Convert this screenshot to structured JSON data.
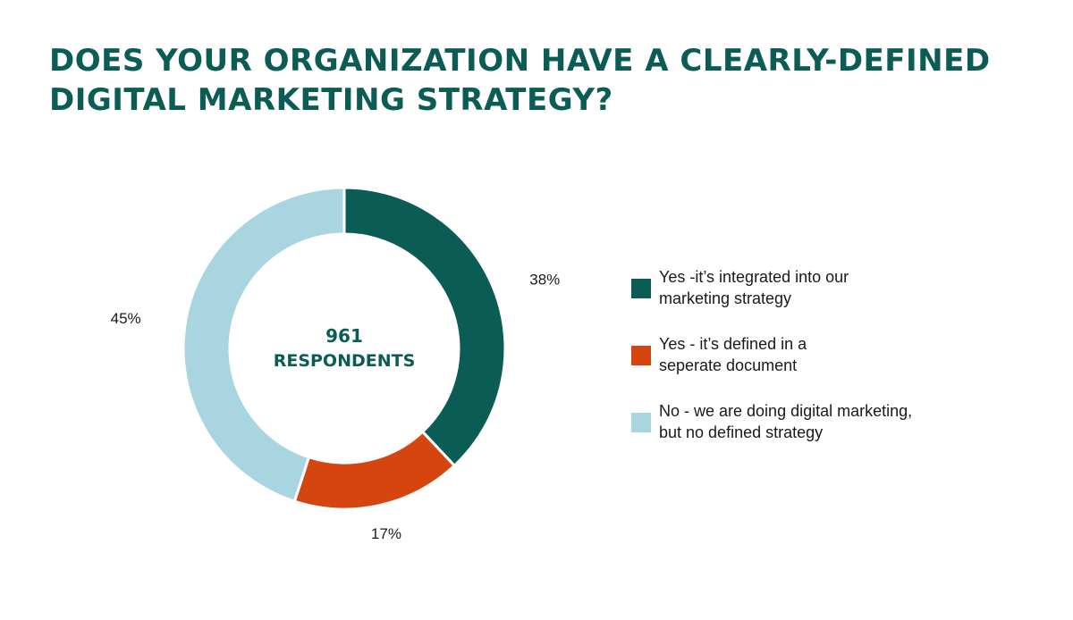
{
  "title": {
    "line1": "DOES YOUR ORGANIZATION HAVE A CLEARLY-DEFINED",
    "line2": "DIGITAL MARKETING STRATEGY?"
  },
  "center_label": {
    "count": "961",
    "text": "RESPONDENTS"
  },
  "legend": [
    {
      "line1": "Yes -it’s integrated into our",
      "line2": "marketing strategy",
      "color": "#0b5c55"
    },
    {
      "line1": "Yes - it’s defined in a",
      "line2": "seperate document",
      "color": "#d4450f"
    },
    {
      "line1": "No - we are doing digital marketing,",
      "line2": "but no defined strategy",
      "color": "#a8d5df"
    }
  ],
  "chart_data": {
    "type": "pie",
    "style": "donut",
    "title": "DOES YOUR ORGANIZATION HAVE A CLEARLY-DEFINED DIGITAL MARKETING STRATEGY?",
    "respondents": 961,
    "slices": [
      {
        "label": "Yes -it’s integrated into our marketing strategy",
        "value": 38,
        "display": "38%",
        "color": "#0b5c55"
      },
      {
        "label": "Yes - it’s defined in a seperate document",
        "value": 17,
        "display": "17%",
        "color": "#d4450f"
      },
      {
        "label": "No - we are doing digital marketing, but no defined strategy",
        "value": 45,
        "display": "45%",
        "color": "#a8d5df"
      }
    ],
    "legend_position": "right"
  }
}
